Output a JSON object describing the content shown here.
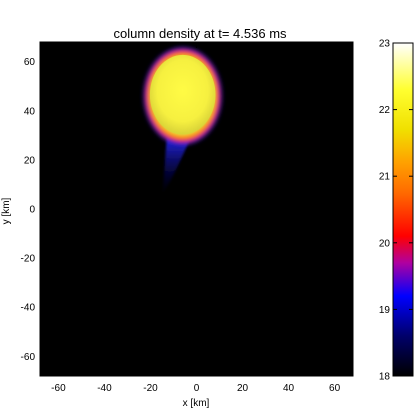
{
  "chart_data": {
    "type": "heatmap",
    "title": "column density at t=  4.536 ms",
    "xlabel": "x [km]",
    "ylabel": "y [km]",
    "xlim": [
      -68,
      68
    ],
    "ylim": [
      -68,
      68
    ],
    "x_ticks": [
      "-60",
      "-40",
      "-20",
      "0",
      "20",
      "40",
      "60"
    ],
    "y_ticks": [
      "60",
      "40",
      "20",
      "0",
      "-20",
      "-40",
      "-60"
    ],
    "x_tick_values": [
      -60,
      -40,
      -20,
      0,
      20,
      40,
      60
    ],
    "y_tick_values": [
      60,
      40,
      20,
      0,
      -20,
      -40,
      -60
    ],
    "background_color": "#000000",
    "colorbar": {
      "range": [
        18,
        23
      ],
      "ticks": [
        "23",
        "22",
        "21",
        "20",
        "19",
        "18"
      ],
      "tick_values": [
        23,
        22,
        21,
        20,
        19,
        18
      ],
      "colors": [
        "#000000",
        "#0000ff",
        "#ff0000",
        "#ff8c00",
        "#ffff00",
        "#ffffff"
      ]
    },
    "blob": {
      "center_x": -6,
      "center_y": 46,
      "radius_x": 15,
      "radius_y": 18,
      "core_value": 22.15,
      "tail_end_y": 6
    }
  }
}
